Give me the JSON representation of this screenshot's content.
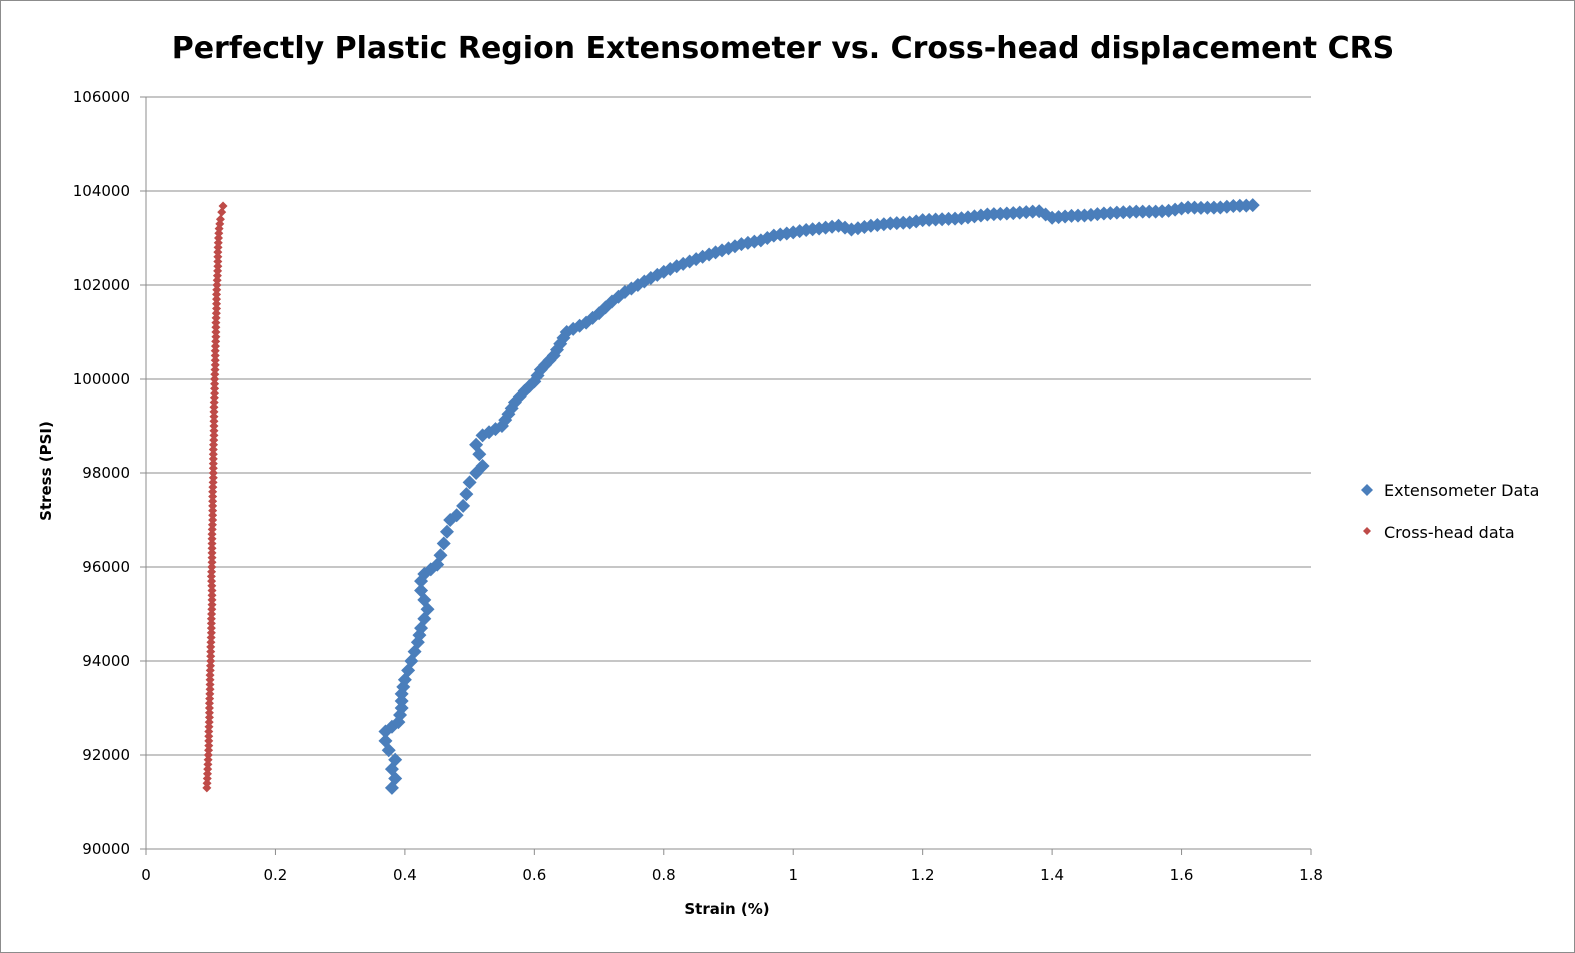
{
  "chart_data": {
    "type": "scatter",
    "title": "Perfectly Plastic Region Extensometer vs. Cross-head displacement CRS",
    "xlabel": "Strain (%)",
    "ylabel": "Stress (PSI)",
    "xlim": [
      0,
      1.8
    ],
    "ylim": [
      90000,
      106000
    ],
    "x_ticks": [
      "0",
      "0.2",
      "0.4",
      "0.6",
      "0.8",
      "1",
      "1.2",
      "1.4",
      "1.6",
      "1.8"
    ],
    "y_ticks": [
      "90000",
      "92000",
      "94000",
      "96000",
      "98000",
      "100000",
      "102000",
      "104000",
      "106000"
    ],
    "grid": "horizontal",
    "legend_position": "right",
    "series": [
      {
        "name": "Extensometer Data",
        "color": "#4a7ebb",
        "marker": "diamond",
        "points": [
          [
            0.38,
            91300
          ],
          [
            0.385,
            91500
          ],
          [
            0.38,
            91700
          ],
          [
            0.385,
            91900
          ],
          [
            0.375,
            92100
          ],
          [
            0.37,
            92300
          ],
          [
            0.37,
            92500
          ],
          [
            0.39,
            92700
          ],
          [
            0.395,
            93000
          ],
          [
            0.395,
            93300
          ],
          [
            0.4,
            93600
          ],
          [
            0.405,
            93800
          ],
          [
            0.41,
            94000
          ],
          [
            0.415,
            94200
          ],
          [
            0.42,
            94400
          ],
          [
            0.425,
            94700
          ],
          [
            0.43,
            94900
          ],
          [
            0.435,
            95100
          ],
          [
            0.43,
            95300
          ],
          [
            0.425,
            95500
          ],
          [
            0.425,
            95700
          ],
          [
            0.43,
            95850
          ],
          [
            0.44,
            95950
          ],
          [
            0.45,
            96050
          ],
          [
            0.455,
            96250
          ],
          [
            0.46,
            96500
          ],
          [
            0.465,
            96750
          ],
          [
            0.47,
            97000
          ],
          [
            0.48,
            97100
          ],
          [
            0.49,
            97300
          ],
          [
            0.495,
            97550
          ],
          [
            0.5,
            97800
          ],
          [
            0.51,
            98000
          ],
          [
            0.52,
            98150
          ],
          [
            0.515,
            98400
          ],
          [
            0.51,
            98600
          ],
          [
            0.52,
            98800
          ],
          [
            0.55,
            99000
          ],
          [
            0.56,
            99250
          ],
          [
            0.57,
            99500
          ],
          [
            0.585,
            99750
          ],
          [
            0.6,
            99950
          ],
          [
            0.61,
            100200
          ],
          [
            0.63,
            100500
          ],
          [
            0.64,
            100750
          ],
          [
            0.65,
            101000
          ],
          [
            0.68,
            101200
          ],
          [
            0.7,
            101400
          ],
          [
            0.72,
            101650
          ],
          [
            0.74,
            101850
          ],
          [
            0.76,
            102000
          ],
          [
            0.78,
            102150
          ],
          [
            0.8,
            102280
          ],
          [
            0.82,
            102400
          ],
          [
            0.85,
            102550
          ],
          [
            0.87,
            102650
          ],
          [
            0.9,
            102780
          ],
          [
            0.92,
            102870
          ],
          [
            0.95,
            102950
          ],
          [
            0.97,
            103050
          ],
          [
            1.0,
            103120
          ],
          [
            1.02,
            103170
          ],
          [
            1.05,
            103220
          ],
          [
            1.07,
            103260
          ],
          [
            1.09,
            103180
          ],
          [
            1.12,
            103260
          ],
          [
            1.15,
            103310
          ],
          [
            1.18,
            103330
          ],
          [
            1.2,
            103380
          ],
          [
            1.23,
            103400
          ],
          [
            1.26,
            103420
          ],
          [
            1.28,
            103460
          ],
          [
            1.3,
            103500
          ],
          [
            1.33,
            103520
          ],
          [
            1.36,
            103550
          ],
          [
            1.38,
            103570
          ],
          [
            1.4,
            103430
          ],
          [
            1.43,
            103470
          ],
          [
            1.45,
            103480
          ],
          [
            1.48,
            103520
          ],
          [
            1.5,
            103540
          ],
          [
            1.53,
            103560
          ],
          [
            1.56,
            103560
          ],
          [
            1.58,
            103580
          ],
          [
            1.61,
            103650
          ],
          [
            1.63,
            103640
          ],
          [
            1.66,
            103650
          ],
          [
            1.68,
            103680
          ],
          [
            1.7,
            103690
          ],
          [
            1.71,
            103700
          ]
        ]
      },
      {
        "name": "Cross-head data",
        "color": "#be4b48",
        "marker": "diamond",
        "points": [
          [
            0.094,
            91300
          ],
          [
            0.095,
            91600
          ],
          [
            0.096,
            91900
          ],
          [
            0.097,
            92200
          ],
          [
            0.097,
            92500
          ],
          [
            0.098,
            92800
          ],
          [
            0.098,
            93100
          ],
          [
            0.099,
            93400
          ],
          [
            0.099,
            93700
          ],
          [
            0.1,
            94000
          ],
          [
            0.1,
            94300
          ],
          [
            0.101,
            94600
          ],
          [
            0.101,
            94900
          ],
          [
            0.102,
            95200
          ],
          [
            0.102,
            95500
          ],
          [
            0.101,
            95800
          ],
          [
            0.102,
            96100
          ],
          [
            0.102,
            96400
          ],
          [
            0.102,
            96700
          ],
          [
            0.103,
            97000
          ],
          [
            0.103,
            97300
          ],
          [
            0.103,
            97600
          ],
          [
            0.104,
            97900
          ],
          [
            0.104,
            98200
          ],
          [
            0.104,
            98500
          ],
          [
            0.105,
            98800
          ],
          [
            0.105,
            99100
          ],
          [
            0.105,
            99400
          ],
          [
            0.106,
            99700
          ],
          [
            0.106,
            100000
          ],
          [
            0.107,
            100300
          ],
          [
            0.107,
            100600
          ],
          [
            0.108,
            100900
          ],
          [
            0.108,
            101200
          ],
          [
            0.109,
            101500
          ],
          [
            0.109,
            101800
          ],
          [
            0.11,
            102100
          ],
          [
            0.111,
            102400
          ],
          [
            0.111,
            102700
          ],
          [
            0.112,
            103000
          ],
          [
            0.113,
            103200
          ],
          [
            0.115,
            103400
          ],
          [
            0.117,
            103550
          ],
          [
            0.119,
            103680
          ]
        ]
      }
    ]
  }
}
